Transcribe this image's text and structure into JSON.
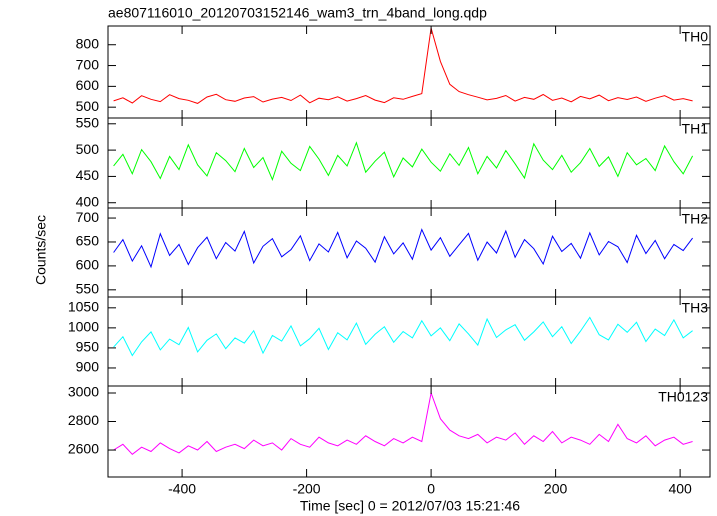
{
  "chart_data": [
    {
      "type": "line",
      "title": "ae807116010_20120703152146_wam3_trn_4band_long.qdp",
      "label": "TH0",
      "color": "#ff0000",
      "x": [
        -510,
        -495,
        -480,
        -465,
        -450,
        -435,
        -420,
        -405,
        -390,
        -375,
        -360,
        -345,
        -330,
        -315,
        -300,
        -285,
        -270,
        -255,
        -240,
        -225,
        -210,
        -195,
        -180,
        -165,
        -150,
        -135,
        -120,
        -105,
        -90,
        -75,
        -60,
        -45,
        -30,
        -15,
        0,
        15,
        30,
        45,
        60,
        75,
        90,
        105,
        120,
        135,
        150,
        165,
        180,
        195,
        210,
        225,
        240,
        255,
        270,
        285,
        300,
        315,
        330,
        345,
        360,
        375,
        390,
        405,
        420
      ],
      "values": [
        530,
        545,
        520,
        555,
        538,
        527,
        560,
        541,
        533,
        518,
        549,
        562,
        536,
        528,
        544,
        551,
        525,
        539,
        547,
        532,
        558,
        521,
        543,
        536,
        550,
        529,
        541,
        556,
        534,
        522,
        545,
        538,
        552,
        565,
        880,
        720,
        610,
        575,
        560,
        548,
        535,
        542,
        556,
        529,
        547,
        538,
        561,
        533,
        544,
        526,
        552,
        540,
        558,
        531,
        546,
        537,
        549,
        528,
        543,
        555,
        534,
        541,
        530
      ],
      "xlim": [
        -519,
        448
      ],
      "ylim": [
        448,
        890
      ],
      "yticks": [
        500,
        600,
        700,
        800
      ]
    },
    {
      "type": "line",
      "label": "TH1",
      "color": "#00ff00",
      "x": [
        -510,
        -495,
        -480,
        -465,
        -450,
        -435,
        -420,
        -405,
        -390,
        -375,
        -360,
        -345,
        -330,
        -315,
        -300,
        -285,
        -270,
        -255,
        -240,
        -225,
        -210,
        -195,
        -180,
        -165,
        -150,
        -135,
        -120,
        -105,
        -90,
        -75,
        -60,
        -45,
        -30,
        -15,
        0,
        15,
        30,
        45,
        60,
        75,
        90,
        105,
        120,
        135,
        150,
        165,
        180,
        195,
        210,
        225,
        240,
        255,
        270,
        285,
        300,
        315,
        330,
        345,
        360,
        375,
        390,
        405,
        420
      ],
      "values": [
        470,
        492,
        455,
        501,
        478,
        446,
        488,
        463,
        510,
        472,
        451,
        495,
        480,
        459,
        503,
        467,
        486,
        444,
        498,
        475,
        461,
        507,
        483,
        452,
        490,
        470,
        514,
        458,
        479,
        496,
        449,
        485,
        468,
        502,
        477,
        460,
        493,
        471,
        505,
        455,
        488,
        466,
        499,
        474,
        447,
        512,
        481,
        463,
        490,
        458,
        476,
        503,
        469,
        487,
        450,
        495,
        472,
        484,
        461,
        508,
        478,
        455,
        489
      ],
      "xlim": [
        -519,
        448
      ],
      "ylim": [
        390,
        561
      ],
      "yticks": [
        400,
        450,
        500,
        550
      ]
    },
    {
      "type": "line",
      "label": "TH2",
      "color": "#0000ff",
      "ylabel": "Counts/sec",
      "x": [
        -510,
        -495,
        -480,
        -465,
        -450,
        -435,
        -420,
        -405,
        -390,
        -375,
        -360,
        -345,
        -330,
        -315,
        -300,
        -285,
        -270,
        -255,
        -240,
        -225,
        -210,
        -195,
        -180,
        -165,
        -150,
        -135,
        -120,
        -105,
        -90,
        -75,
        -60,
        -45,
        -30,
        -15,
        0,
        15,
        30,
        45,
        60,
        75,
        90,
        105,
        120,
        135,
        150,
        165,
        180,
        195,
        210,
        225,
        240,
        255,
        270,
        285,
        300,
        315,
        330,
        345,
        360,
        375,
        390,
        405,
        420
      ],
      "values": [
        628,
        655,
        610,
        642,
        598,
        667,
        622,
        645,
        603,
        638,
        660,
        615,
        649,
        631,
        672,
        606,
        641,
        657,
        619,
        634,
        663,
        611,
        646,
        629,
        670,
        617,
        652,
        637,
        608,
        661,
        625,
        648,
        614,
        676,
        633,
        659,
        620,
        644,
        668,
        612,
        650,
        627,
        673,
        618,
        655,
        636,
        604,
        662,
        630,
        647,
        616,
        669,
        623,
        651,
        640,
        607,
        664,
        626,
        653,
        615,
        645,
        632,
        658
      ],
      "xlim": [
        -519,
        448
      ],
      "ylim": [
        535,
        721
      ],
      "yticks": [
        550,
        600,
        650,
        700
      ]
    },
    {
      "type": "line",
      "label": "TH3",
      "color": "#00ffff",
      "x": [
        -510,
        -495,
        -480,
        -465,
        -450,
        -435,
        -420,
        -405,
        -390,
        -375,
        -360,
        -345,
        -330,
        -315,
        -300,
        -285,
        -270,
        -255,
        -240,
        -225,
        -210,
        -195,
        -180,
        -165,
        -150,
        -135,
        -120,
        -105,
        -90,
        -75,
        -60,
        -45,
        -30,
        -15,
        0,
        15,
        30,
        45,
        60,
        75,
        90,
        105,
        120,
        135,
        150,
        165,
        180,
        195,
        210,
        225,
        240,
        255,
        270,
        285,
        300,
        315,
        330,
        345,
        360,
        375,
        390,
        405,
        420
      ],
      "values": [
        952,
        978,
        931,
        965,
        990,
        945,
        972,
        958,
        1001,
        940,
        969,
        985,
        948,
        975,
        962,
        993,
        937,
        981,
        967,
        1005,
        955,
        973,
        999,
        946,
        988,
        970,
        1012,
        959,
        984,
        1003,
        964,
        991,
        975,
        1018,
        980,
        1000,
        968,
        1010,
        985,
        957,
        1022,
        976,
        995,
        1008,
        969,
        990,
        1015,
        978,
        1003,
        961,
        992,
        1026,
        983,
        970,
        1009,
        989,
        1014,
        966,
        997,
        981,
        1020,
        975,
        993
      ],
      "xlim": [
        -519,
        448
      ],
      "ylim": [
        855,
        1077
      ],
      "yticks": [
        900,
        950,
        1000,
        1050
      ]
    },
    {
      "type": "line",
      "label": "TH0123",
      "color": "#ff00ff",
      "xlabel": "Time [sec] 0 = 2012/07/03 15:21:46",
      "x": [
        -510,
        -495,
        -480,
        -465,
        -450,
        -435,
        -420,
        -405,
        -390,
        -375,
        -360,
        -345,
        -330,
        -315,
        -300,
        -285,
        -270,
        -255,
        -240,
        -225,
        -210,
        -195,
        -180,
        -165,
        -150,
        -135,
        -120,
        -105,
        -90,
        -75,
        -60,
        -45,
        -30,
        -15,
        0,
        15,
        30,
        45,
        60,
        75,
        90,
        105,
        120,
        135,
        150,
        165,
        180,
        195,
        210,
        225,
        240,
        255,
        270,
        285,
        300,
        315,
        330,
        345,
        360,
        375,
        390,
        405,
        420
      ],
      "values": [
        2600,
        2640,
        2570,
        2620,
        2590,
        2650,
        2610,
        2580,
        2630,
        2600,
        2660,
        2590,
        2620,
        2640,
        2610,
        2670,
        2630,
        2650,
        2600,
        2680,
        2640,
        2620,
        2690,
        2650,
        2630,
        2670,
        2640,
        2700,
        2660,
        2630,
        2680,
        2650,
        2690,
        2660,
        3000,
        2820,
        2740,
        2700,
        2680,
        2710,
        2650,
        2690,
        2670,
        2720,
        2640,
        2700,
        2660,
        2730,
        2650,
        2690,
        2670,
        2640,
        2710,
        2660,
        2780,
        2680,
        2650,
        2700,
        2630,
        2670,
        2690,
        2640,
        2660
      ],
      "xlim": [
        -519,
        448
      ],
      "ylim": [
        2411,
        3049
      ],
      "yticks": [
        2600,
        2800,
        3000
      ],
      "xticks": [
        -400,
        -200,
        0,
        200,
        400
      ]
    }
  ]
}
